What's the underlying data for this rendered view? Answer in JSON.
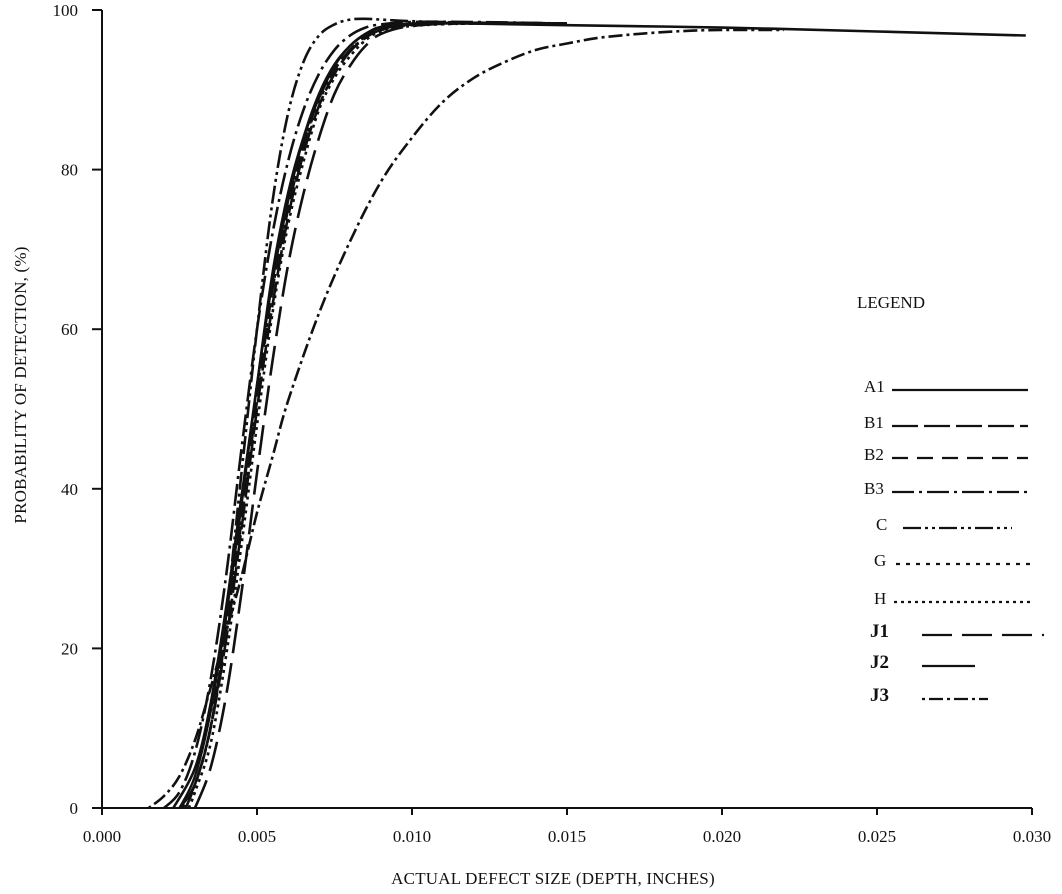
{
  "chart_data": {
    "type": "line",
    "title": "",
    "xlabel": "ACTUAL DEFECT SIZE (DEPTH, INCHES)",
    "ylabel": "PROBABILITY OF DETECTION, (%)",
    "xlim": [
      0.0,
      0.03
    ],
    "ylim": [
      0,
      100
    ],
    "xticks": [
      "0.000",
      "0.005",
      "0.010",
      "0.015",
      "0.020",
      "0.025",
      "0.030"
    ],
    "xtick_values": [
      0.0,
      0.005,
      0.01,
      0.015,
      0.02,
      0.025,
      0.03
    ],
    "yticks": [
      "0",
      "20",
      "40",
      "60",
      "80",
      "100"
    ],
    "ytick_values": [
      0,
      20,
      40,
      60,
      80,
      100
    ],
    "grid": false,
    "legend": {
      "title": "LEGEND",
      "placement": "right"
    },
    "series": [
      {
        "name": "A1",
        "dash": "solid",
        "x": [
          0.0023,
          0.003,
          0.0035,
          0.004,
          0.0045,
          0.005,
          0.0055,
          0.006,
          0.0065,
          0.007,
          0.0075,
          0.008,
          0.0085,
          0.009,
          0.01,
          0.012,
          0.015,
          0.02,
          0.025,
          0.0298
        ],
        "y": [
          0,
          5,
          13,
          25,
          39,
          53,
          67,
          77,
          84,
          89,
          93,
          95.5,
          97,
          97.8,
          98.3,
          98.3,
          98.1,
          97.8,
          97.3,
          96.8
        ]
      },
      {
        "name": "B1",
        "dash": "longdash",
        "x": [
          0.0025,
          0.003,
          0.0035,
          0.004,
          0.0045,
          0.005,
          0.0055,
          0.006,
          0.0065,
          0.007,
          0.0075,
          0.008,
          0.0085,
          0.009,
          0.01,
          0.012,
          0.015
        ],
        "y": [
          0,
          3,
          10,
          21,
          35,
          50,
          63,
          74,
          82,
          88,
          92,
          94.8,
          96.5,
          97.5,
          98.2,
          98.4,
          98.3
        ]
      },
      {
        "name": "B2",
        "dash": "dash",
        "x": [
          0.0025,
          0.003,
          0.0035,
          0.004,
          0.0045,
          0.005,
          0.0055,
          0.006,
          0.0065,
          0.007,
          0.0075,
          0.008,
          0.0085,
          0.009,
          0.01,
          0.012,
          0.015
        ],
        "y": [
          0,
          3,
          10,
          22,
          36,
          51,
          65,
          75,
          83,
          89,
          92.5,
          95,
          96.7,
          97.6,
          98.2,
          98.4,
          98.3
        ]
      },
      {
        "name": "B3",
        "dash": "dashdot",
        "x": [
          0.002,
          0.0025,
          0.003,
          0.0035,
          0.004,
          0.0045,
          0.005,
          0.0055,
          0.006,
          0.0065,
          0.007,
          0.0075,
          0.008,
          0.0085,
          0.009,
          0.01,
          0.012,
          0.015
        ],
        "y": [
          0,
          2,
          7,
          16,
          29,
          45,
          60,
          72,
          81,
          87.5,
          92,
          95,
          96.8,
          97.8,
          98.2,
          98.5,
          98.5,
          98.3
        ]
      },
      {
        "name": "C",
        "dash": "dashdotdot",
        "x": [
          0.0027,
          0.003,
          0.0035,
          0.004,
          0.0045,
          0.005,
          0.0055,
          0.006,
          0.0065,
          0.007,
          0.0075,
          0.008,
          0.0085,
          0.009,
          0.01,
          0.012,
          0.015
        ],
        "y": [
          0,
          3,
          10,
          24,
          42,
          60,
          76,
          87,
          93.5,
          96.8,
          98.2,
          98.8,
          98.9,
          98.8,
          98.6,
          98.4,
          98.2
        ]
      },
      {
        "name": "G",
        "dash": "dot",
        "x": [
          0.0026,
          0.003,
          0.0035,
          0.004,
          0.0045,
          0.005,
          0.0055,
          0.006,
          0.0065,
          0.007,
          0.0075,
          0.008,
          0.0085,
          0.009,
          0.01,
          0.012,
          0.015
        ],
        "y": [
          0,
          3,
          10,
          22,
          37,
          52,
          65,
          75,
          83,
          88.5,
          92.5,
          95,
          96.5,
          97.5,
          98.1,
          98.3,
          98.2
        ]
      },
      {
        "name": "H",
        "dash": "finedot",
        "x": [
          0.0028,
          0.003,
          0.0035,
          0.004,
          0.0045,
          0.005,
          0.0055,
          0.006,
          0.0065,
          0.007,
          0.0075,
          0.008,
          0.0085,
          0.009,
          0.01,
          0.012,
          0.015
        ],
        "y": [
          0,
          2,
          8,
          19,
          33,
          48,
          62,
          73,
          81,
          87.5,
          91.5,
          94.2,
          96.2,
          97.3,
          98,
          98.3,
          98.2
        ]
      },
      {
        "name": "J1",
        "dash": "longdash-gap",
        "x": [
          0.003,
          0.0035,
          0.004,
          0.0045,
          0.005,
          0.0055,
          0.006,
          0.0065,
          0.007,
          0.0075,
          0.008,
          0.0085,
          0.009,
          0.01,
          0.012,
          0.015
        ],
        "y": [
          0,
          5,
          14,
          27,
          42,
          56,
          68,
          77,
          84,
          89.5,
          93,
          95.5,
          97,
          98,
          98.4,
          98.3
        ]
      },
      {
        "name": "J2",
        "dash": "solid-short",
        "x": [
          0.0025,
          0.003,
          0.0035,
          0.004,
          0.0045,
          0.005,
          0.0055,
          0.006,
          0.0065,
          0.007,
          0.0075,
          0.008,
          0.0085,
          0.009,
          0.01,
          0.012,
          0.015
        ],
        "y": [
          0,
          4,
          12,
          24,
          38,
          53,
          66,
          76,
          84,
          89.5,
          93.2,
          95.5,
          97,
          97.9,
          98.3,
          98.4,
          98.3
        ]
      },
      {
        "name": "J3",
        "dash": "dotdash",
        "x": [
          0.0015,
          0.002,
          0.0025,
          0.003,
          0.0035,
          0.004,
          0.0045,
          0.005,
          0.0055,
          0.006,
          0.007,
          0.008,
          0.009,
          0.01,
          0.011,
          0.012,
          0.013,
          0.014,
          0.015,
          0.016,
          0.017,
          0.018,
          0.019,
          0.02,
          0.022
        ],
        "y": [
          0,
          1.5,
          4,
          8.5,
          15,
          22,
          29,
          37,
          44,
          51,
          62,
          71,
          78.5,
          84,
          88.5,
          91.5,
          93.5,
          95,
          95.8,
          96.5,
          96.9,
          97.2,
          97.4,
          97.5,
          97.5
        ]
      }
    ]
  }
}
